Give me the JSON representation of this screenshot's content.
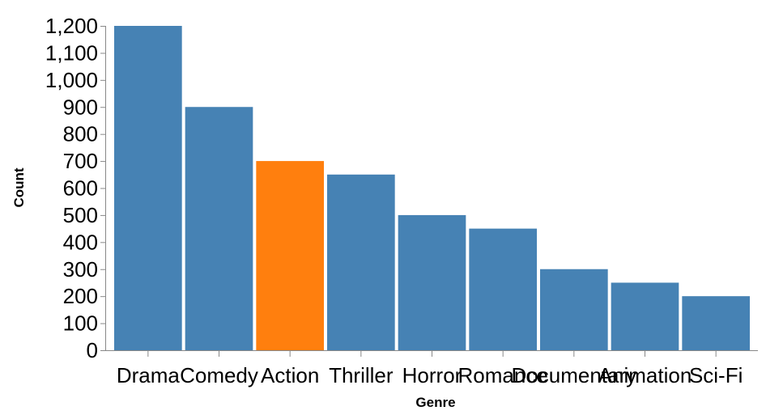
{
  "chart_data": {
    "type": "bar",
    "title": "",
    "xlabel": "Genre",
    "ylabel": "Count",
    "categories": [
      "Drama",
      "Comedy",
      "Action",
      "Thriller",
      "Horror",
      "Romance",
      "Documentary",
      "Animation",
      "Sci-Fi"
    ],
    "values": [
      1200,
      900,
      700,
      650,
      500,
      450,
      300,
      250,
      200
    ],
    "highlight": "Action",
    "ylim": [
      0,
      1200
    ],
    "yticks": [
      0,
      100,
      200,
      300,
      400,
      500,
      600,
      700,
      800,
      900,
      1000,
      1100,
      1200
    ],
    "ytick_labels": [
      "0",
      "100",
      "200",
      "300",
      "400",
      "500",
      "600",
      "700",
      "800",
      "900",
      "1,000",
      "1,100",
      "1,200"
    ],
    "grid": false,
    "colors": {
      "bar": "#4682b4",
      "highlight": "#ff7f0e"
    }
  }
}
